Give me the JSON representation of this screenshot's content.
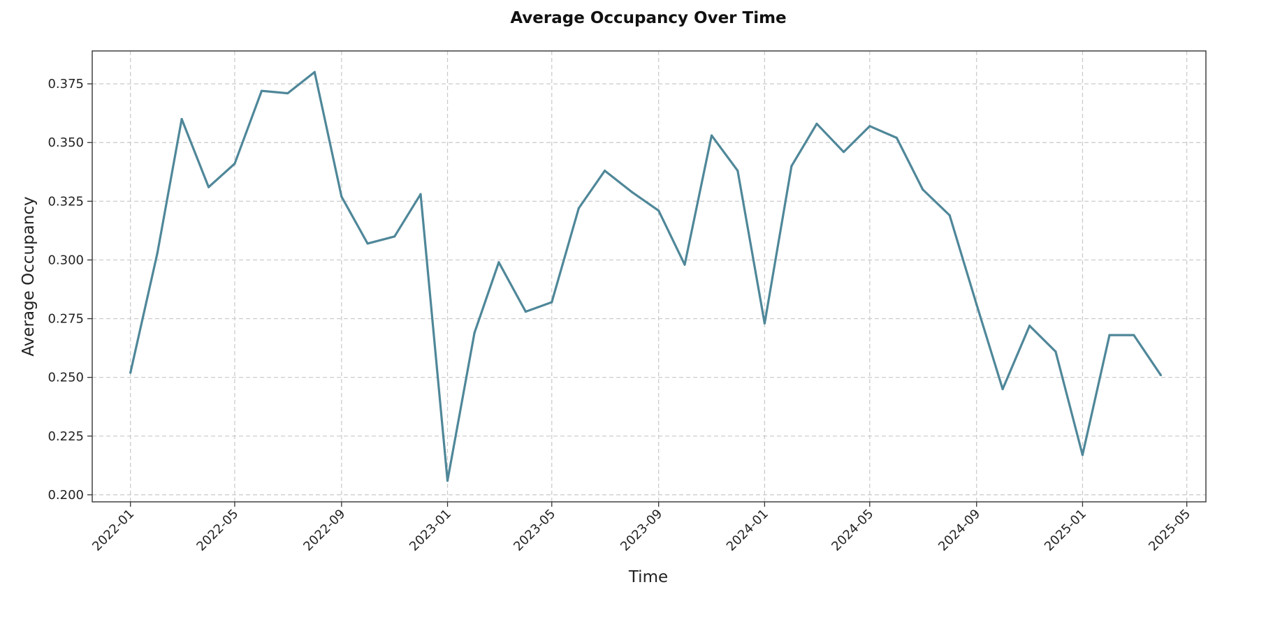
{
  "chart_data": {
    "type": "line",
    "title": "Average Occupancy Over Time",
    "xlabel": "Time",
    "ylabel": "Average Occupancy",
    "x_ticks": [
      "2022-01",
      "2022-05",
      "2022-09",
      "2023-01",
      "2023-05",
      "2023-09",
      "2024-01",
      "2024-05",
      "2024-09",
      "2025-01",
      "2025-05"
    ],
    "y_ticks": [
      "0.200",
      "0.225",
      "0.250",
      "0.275",
      "0.300",
      "0.325",
      "0.350",
      "0.375"
    ],
    "xlim": [
      "2021-11-18",
      "2025-05-23"
    ],
    "ylim": [
      0.197,
      0.389
    ],
    "grid": true,
    "line_color": "#4f8799",
    "series": [
      {
        "x": [
          "2022-01",
          "2022-02",
          "2022-03",
          "2022-04",
          "2022-05",
          "2022-06",
          "2022-07",
          "2022-08",
          "2022-09",
          "2022-10",
          "2022-11",
          "2022-12",
          "2023-01",
          "2023-02",
          "2023-03",
          "2023-04",
          "2023-05",
          "2023-06",
          "2023-07",
          "2023-08",
          "2023-09",
          "2023-10",
          "2023-11",
          "2023-12",
          "2024-01",
          "2024-02",
          "2024-03",
          "2024-04",
          "2024-05",
          "2024-06",
          "2024-07",
          "2024-08",
          "2024-09",
          "2024-10",
          "2024-11",
          "2024-12",
          "2025-01",
          "2025-02",
          "2025-03",
          "2025-04"
        ],
        "values": [
          0.252,
          0.303,
          0.36,
          0.331,
          0.341,
          0.372,
          0.371,
          0.38,
          0.327,
          0.307,
          0.31,
          0.328,
          0.206,
          0.269,
          0.299,
          0.278,
          0.282,
          0.322,
          0.338,
          0.329,
          0.321,
          0.298,
          0.353,
          0.338,
          0.273,
          0.34,
          0.358,
          0.346,
          0.357,
          0.352,
          0.33,
          0.319,
          0.281,
          0.245,
          0.272,
          0.261,
          0.217,
          0.268,
          0.268,
          0.251
        ]
      }
    ]
  }
}
